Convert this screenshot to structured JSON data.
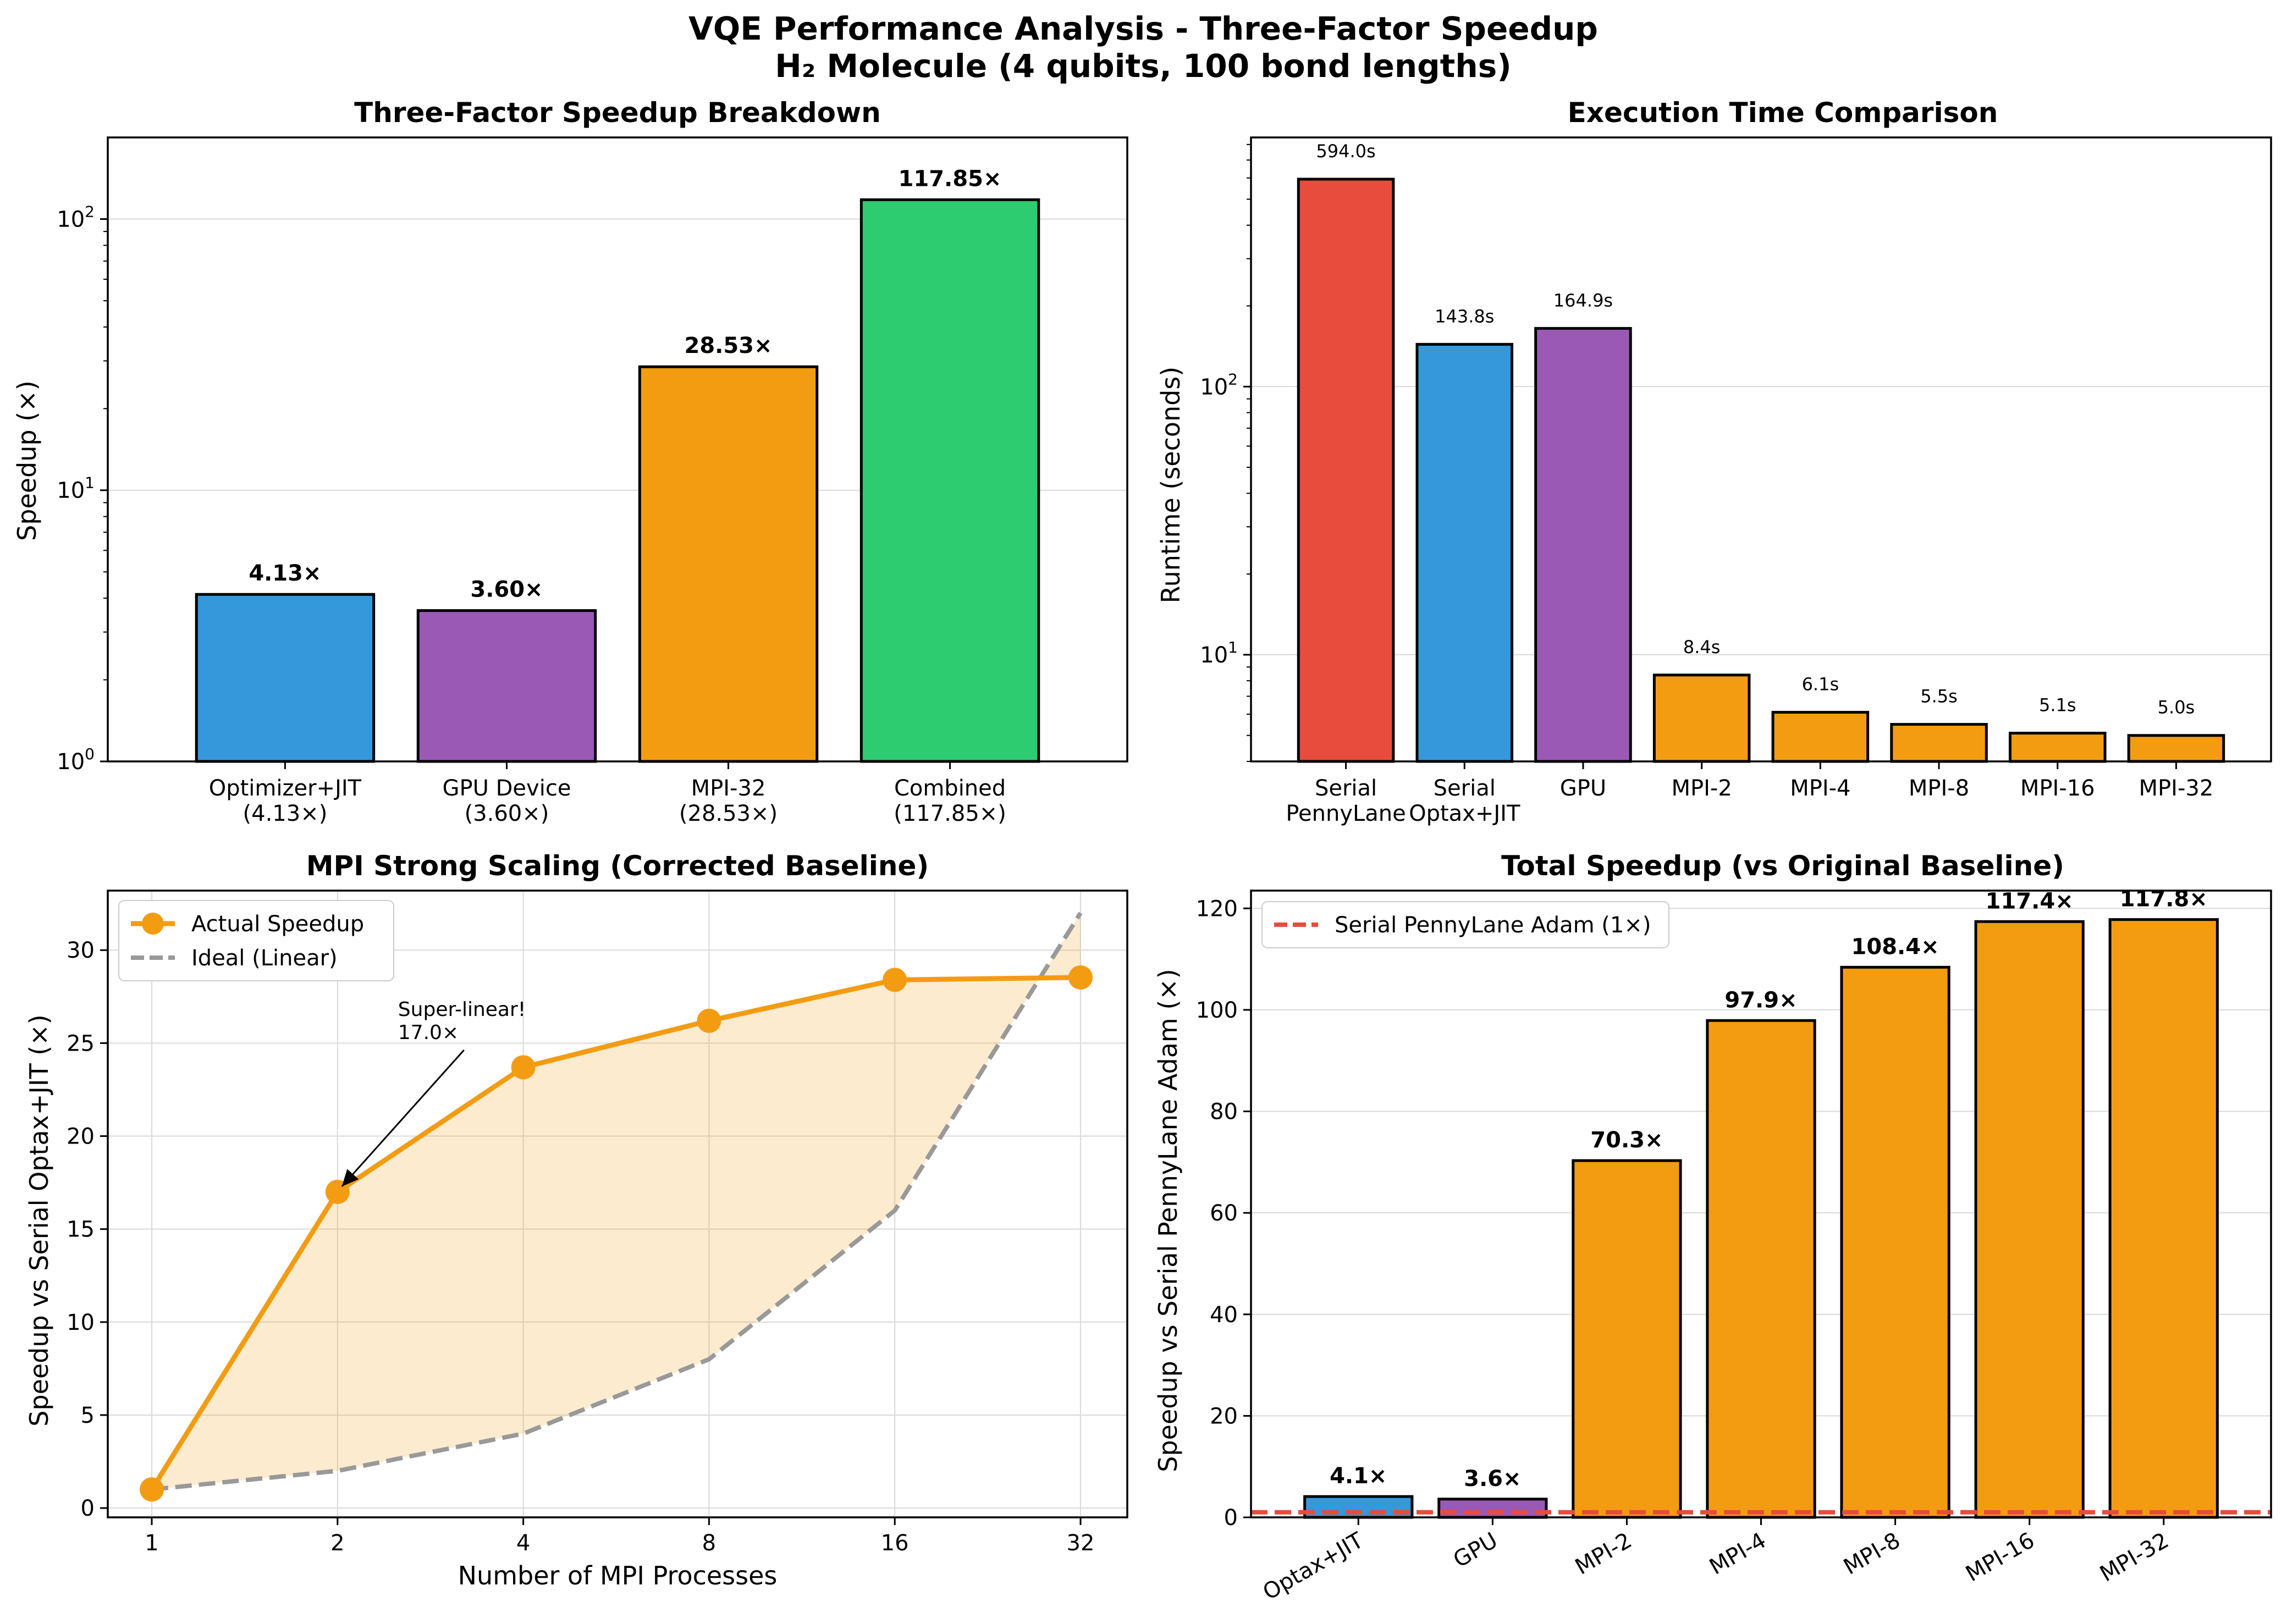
{
  "figure": {
    "title_line1": "VQE Performance Analysis - Three-Factor Speedup",
    "title_line2": "H₂ Molecule (4 qubits, 100 bond lengths)"
  },
  "colors": {
    "blue": "#3498db",
    "purple": "#9b59b6",
    "orange": "#f39c12",
    "green": "#2ecc71",
    "red": "#e74c3c",
    "gray": "#999999"
  },
  "chart_data": [
    {
      "id": "breakdown",
      "type": "bar",
      "title": "Three-Factor Speedup Breakdown",
      "xlabel": "",
      "ylabel": "Speedup (×)",
      "yscale": "log",
      "ylim": [
        1,
        200
      ],
      "yticks": [
        1,
        10,
        100
      ],
      "categories": [
        "Optimizer+JIT\n(4.13×)",
        "GPU Device\n(3.60×)",
        "MPI-32\n(28.53×)",
        "Combined\n(117.85×)"
      ],
      "values": [
        4.13,
        3.6,
        28.53,
        117.85
      ],
      "value_labels": [
        "4.13×",
        "3.60×",
        "28.53×",
        "117.85×"
      ],
      "colors": [
        "#3498db",
        "#9b59b6",
        "#f39c12",
        "#2ecc71"
      ]
    },
    {
      "id": "runtime",
      "type": "bar",
      "title": "Execution Time Comparison",
      "xlabel": "",
      "ylabel": "Runtime (seconds)",
      "yscale": "log",
      "ylim": [
        4,
        850
      ],
      "yticks": [
        10,
        100
      ],
      "categories": [
        "Serial\nPennyLane",
        "Serial\nOptax+JIT",
        "GPU",
        "MPI-2",
        "MPI-4",
        "MPI-8",
        "MPI-16",
        "MPI-32"
      ],
      "values": [
        594.0,
        143.8,
        164.9,
        8.4,
        6.1,
        5.5,
        5.1,
        5.0
      ],
      "value_labels": [
        "594.0s",
        "143.8s",
        "164.9s",
        "8.4s",
        "6.1s",
        "5.5s",
        "5.1s",
        "5.0s"
      ],
      "colors": [
        "#e74c3c",
        "#3498db",
        "#9b59b6",
        "#f39c12",
        "#f39c12",
        "#f39c12",
        "#f39c12",
        "#f39c12"
      ]
    },
    {
      "id": "scaling",
      "type": "line",
      "title": "MPI Strong Scaling (Corrected Baseline)",
      "xlabel": "Number of MPI Processes",
      "ylabel": "Speedup vs Serial Optax+JIT (×)",
      "xscale": "log2",
      "x": [
        1,
        2,
        4,
        8,
        16,
        32
      ],
      "xticks": [
        "1",
        "2",
        "4",
        "8",
        "16",
        "32"
      ],
      "ylim": [
        -0.5,
        33.2
      ],
      "yticks": [
        0,
        5,
        10,
        15,
        20,
        25,
        30
      ],
      "series": [
        {
          "name": "Actual Speedup",
          "values": [
            1.0,
            17.0,
            23.7,
            26.2,
            28.4,
            28.53
          ],
          "color": "#f39c12",
          "style": "solid-marker"
        },
        {
          "name": "Ideal (Linear)",
          "values": [
            1,
            2,
            4,
            8,
            16,
            32
          ],
          "color": "#999999",
          "style": "dashed"
        }
      ],
      "annotation": {
        "text_line1": "Super-linear!",
        "text_line2": "17.0×",
        "x": 2,
        "y": 17.0
      }
    },
    {
      "id": "total",
      "type": "bar",
      "title": "Total Speedup (vs Original Baseline)",
      "xlabel": "",
      "ylabel": "Speedup vs Serial PennyLane Adam (×)",
      "ylim": [
        0,
        123.5
      ],
      "yticks": [
        0,
        20,
        40,
        60,
        80,
        100,
        120
      ],
      "categories": [
        "Optax+JIT",
        "GPU",
        "MPI-2",
        "MPI-4",
        "MPI-8",
        "MPI-16",
        "MPI-32"
      ],
      "values": [
        4.1,
        3.6,
        70.3,
        97.9,
        108.4,
        117.4,
        117.8
      ],
      "value_labels": [
        "4.1×",
        "3.6×",
        "70.3×",
        "97.9×",
        "108.4×",
        "117.4×",
        "117.8×"
      ],
      "colors": [
        "#3498db",
        "#9b59b6",
        "#f39c12",
        "#f39c12",
        "#f39c12",
        "#f39c12",
        "#f39c12"
      ],
      "reference_line": {
        "label": "Serial PennyLane Adam (1×)",
        "value": 1,
        "color": "#e74c3c"
      }
    }
  ]
}
